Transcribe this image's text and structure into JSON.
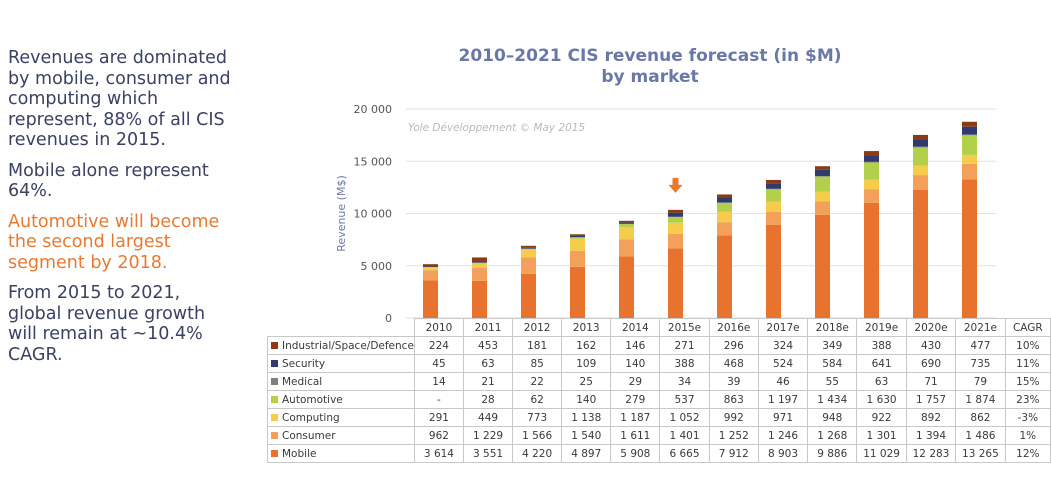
{
  "side_text": {
    "p1": "Revenues are dominated by mobile, consumer and computing which represent, 88% of all CIS revenues in 2015.",
    "p2": "Mobile alone represent 64%.",
    "p3": "Automotive will become the second largest segment by 2018.",
    "p4": "From 2015 to 2021, global revenue growth will remain at ~10.4% CAGR."
  },
  "chart_data": {
    "type": "bar",
    "stacked": true,
    "title": "2010–2021 CIS revenue forecast (in $M) by market",
    "title_lines": [
      "2010–2021 CIS revenue forecast (in $M)",
      "by market"
    ],
    "ylabel": "Revenue (M$)",
    "watermark": "Yole Développement © May 2015",
    "ylim": [
      0,
      20000
    ],
    "yticks": [
      "0",
      "5 000",
      "10 000",
      "15 000",
      "20 000"
    ],
    "ytick_values": [
      0,
      5000,
      10000,
      15000,
      20000
    ],
    "categories": [
      "2010",
      "2011",
      "2012",
      "2013",
      "2014",
      "2015e",
      "2016e",
      "2017e",
      "2018e",
      "2019e",
      "2020e",
      "2021e"
    ],
    "cagr_header": "CAGR",
    "highlight_category": "2015e",
    "highlight_color": "#e8792f",
    "grid": true,
    "series": [
      {
        "name": "Mobile",
        "color": "#e8732f",
        "values": [
          3614,
          3551,
          4220,
          4897,
          5908,
          6665,
          7912,
          8903,
          9886,
          11029,
          12283,
          13265
        ],
        "labels": [
          "3 614",
          "3 551",
          "4 220",
          "4 897",
          "5 908",
          "6 665",
          "7 912",
          "8 903",
          "9 886",
          "11 029",
          "12 283",
          "13 265"
        ],
        "cagr": "12%"
      },
      {
        "name": "Consumer",
        "color": "#f3a05a",
        "values": [
          962,
          1229,
          1566,
          1540,
          1611,
          1401,
          1252,
          1246,
          1268,
          1301,
          1394,
          1486
        ],
        "labels": [
          "962",
          "1 229",
          "1 566",
          "1 540",
          "1 611",
          "1 401",
          "1 252",
          "1 246",
          "1 268",
          "1 301",
          "1 394",
          "1 486"
        ],
        "cagr": "1%"
      },
      {
        "name": "Computing",
        "color": "#f5cd4a",
        "values": [
          291,
          449,
          773,
          1138,
          1187,
          1052,
          992,
          971,
          948,
          922,
          892,
          862
        ],
        "labels": [
          "291",
          "449",
          "773",
          "1 138",
          "1 187",
          "1 052",
          "992",
          "971",
          "948",
          "922",
          "892",
          "862"
        ],
        "cagr": "-3%"
      },
      {
        "name": "Automotive",
        "color": "#b3d04a",
        "values": [
          0,
          28,
          62,
          140,
          279,
          537,
          863,
          1197,
          1434,
          1630,
          1757,
          1874
        ],
        "labels": [
          "-",
          "28",
          "62",
          "140",
          "279",
          "537",
          "863",
          "1 197",
          "1 434",
          "1 630",
          "1 757",
          "1 874"
        ],
        "cagr": "23%"
      },
      {
        "name": "Medical",
        "color": "#7f7f7f",
        "values": [
          14,
          21,
          22,
          25,
          29,
          34,
          39,
          46,
          55,
          63,
          71,
          79
        ],
        "labels": [
          "14",
          "21",
          "22",
          "25",
          "29",
          "34",
          "39",
          "46",
          "55",
          "63",
          "71",
          "79"
        ],
        "cagr": "15%"
      },
      {
        "name": "Security",
        "color": "#2f3a6e",
        "values": [
          45,
          63,
          85,
          109,
          140,
          388,
          468,
          524,
          584,
          641,
          690,
          735
        ],
        "labels": [
          "45",
          "63",
          "85",
          "109",
          "140",
          "388",
          "468",
          "524",
          "584",
          "641",
          "690",
          "735"
        ],
        "cagr": "11%"
      },
      {
        "name": "Industrial/Space/Defence",
        "color": "#8a3a14",
        "values": [
          224,
          453,
          181,
          162,
          146,
          271,
          296,
          324,
          349,
          388,
          430,
          477
        ],
        "labels": [
          "224",
          "453",
          "181",
          "162",
          "146",
          "271",
          "296",
          "324",
          "349",
          "388",
          "430",
          "477"
        ],
        "cagr": "10%"
      }
    ]
  }
}
